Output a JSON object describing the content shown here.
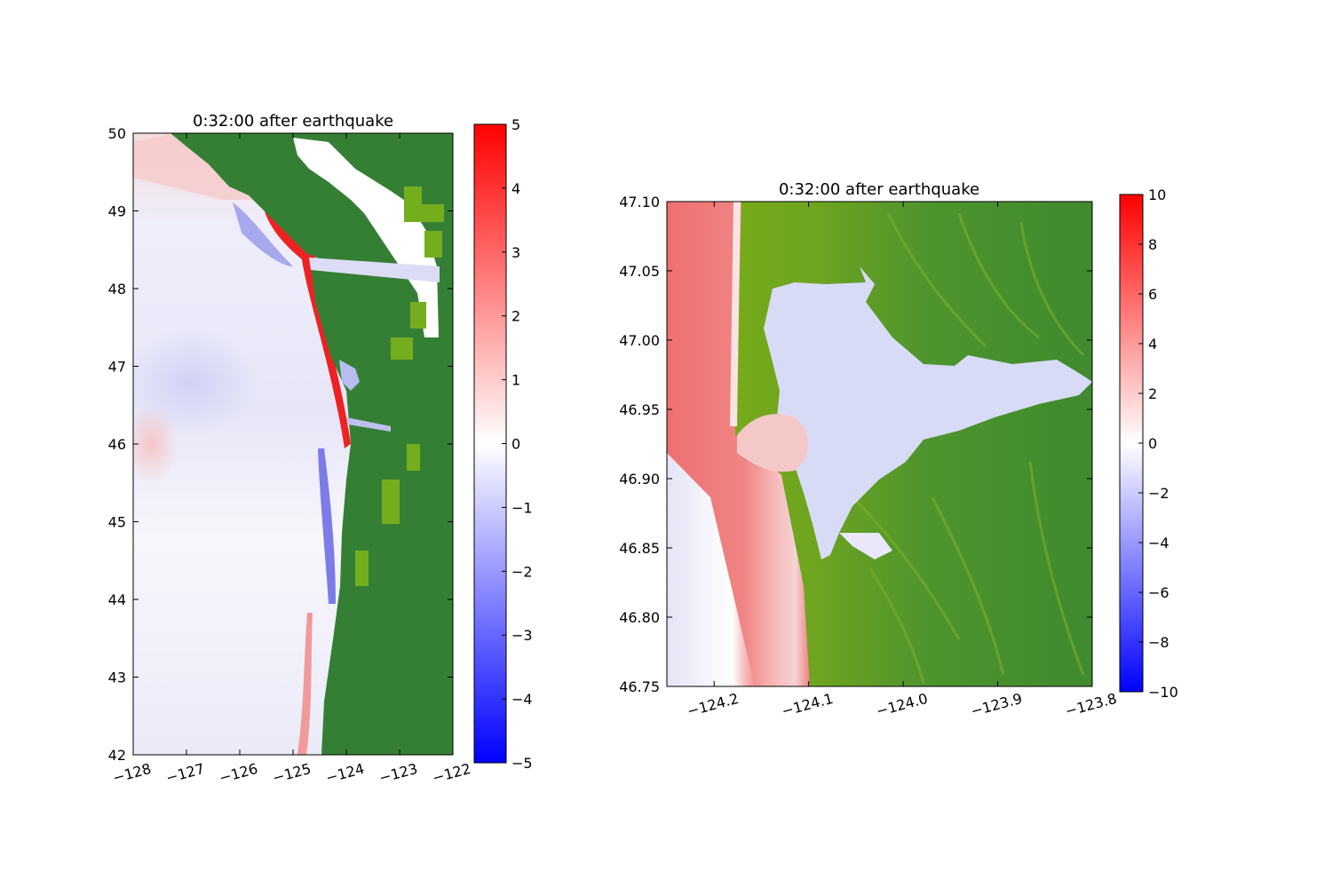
{
  "chart_data": [
    {
      "type": "heatmap",
      "title": "0:32:00 after earthquake",
      "x_ticks": [
        -128,
        -127,
        -126,
        -125,
        -124,
        -123,
        -122
      ],
      "x_tick_labels": [
        "−128",
        "−127",
        "−126",
        "−125",
        "−124",
        "−123",
        "−122"
      ],
      "y_ticks": [
        42,
        43,
        44,
        45,
        46,
        47,
        48,
        49,
        50
      ],
      "y_tick_labels": [
        "42",
        "43",
        "44",
        "45",
        "46",
        "47",
        "48",
        "49",
        "50"
      ],
      "xlim": [
        -128,
        -122
      ],
      "ylim": [
        42,
        50
      ],
      "colorbar": {
        "range": [
          -5,
          5
        ],
        "ticks": [
          -5,
          -4,
          -3,
          -2,
          -1,
          0,
          1,
          2,
          3,
          4,
          5
        ],
        "tick_labels": [
          "−5",
          "−4",
          "−3",
          "−2",
          "−1",
          "0",
          "1",
          "2",
          "3",
          "4",
          "5"
        ],
        "cmap": "bwr"
      },
      "colors": {
        "ocean_neutral": "#ffffff",
        "land": "#357f35",
        "land_light": "#74ae1e"
      }
    },
    {
      "type": "heatmap",
      "title": "0:32:00 after earthquake",
      "x_ticks": [
        -124.2,
        -124.1,
        -124.0,
        -123.9,
        -123.8
      ],
      "x_tick_labels": [
        "−124.2",
        "−124.1",
        "−124.0",
        "−123.9",
        "−123.8"
      ],
      "y_ticks": [
        46.75,
        46.8,
        46.85,
        46.9,
        46.95,
        47.0,
        47.05,
        47.1
      ],
      "y_tick_labels": [
        "46.75",
        "46.80",
        "46.85",
        "46.90",
        "46.95",
        "47.00",
        "47.05",
        "47.10"
      ],
      "xlim": [
        -124.25,
        -123.8
      ],
      "ylim": [
        46.75,
        47.1
      ],
      "colorbar": {
        "range": [
          -10,
          10
        ],
        "ticks": [
          -10,
          -8,
          -6,
          -4,
          -2,
          0,
          2,
          4,
          6,
          8,
          10
        ],
        "tick_labels": [
          "−10",
          "−8",
          "−6",
          "−4",
          "−2",
          "0",
          "2",
          "4",
          "6",
          "8",
          "10"
        ],
        "cmap": "bwr"
      },
      "colors": {
        "land": "#3f8a2f",
        "land_light": "#79b012",
        "bay": "#d8dbf6"
      }
    }
  ]
}
